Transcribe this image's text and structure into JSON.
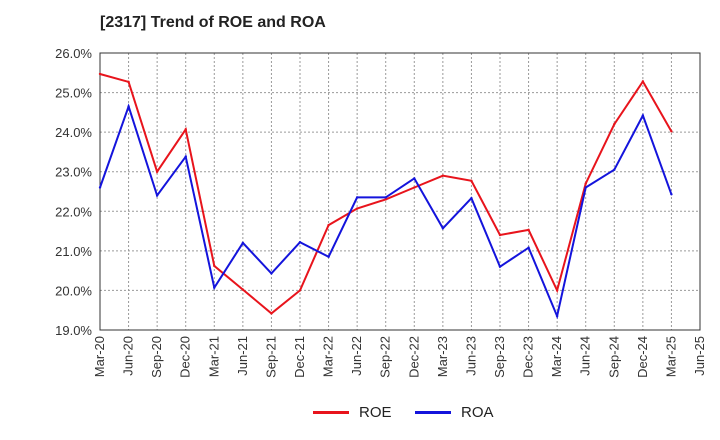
{
  "chart_data": {
    "type": "line",
    "title": "[2317]  Trend of ROE and ROA",
    "xlabel": "",
    "ylabel": "",
    "ylim": [
      19.0,
      26.0
    ],
    "yticks": [
      "19.0%",
      "20.0%",
      "21.0%",
      "22.0%",
      "23.0%",
      "24.0%",
      "25.0%",
      "26.0%"
    ],
    "ytick_values": [
      19.0,
      20.0,
      21.0,
      22.0,
      23.0,
      24.0,
      25.0,
      26.0
    ],
    "categories": [
      "Mar-20",
      "Jun-20",
      "Sep-20",
      "Dec-20",
      "Mar-21",
      "Jun-21",
      "Sep-21",
      "Dec-21",
      "Mar-22",
      "Jun-22",
      "Sep-22",
      "Dec-22",
      "Mar-23",
      "Jun-23",
      "Sep-23",
      "Dec-23",
      "Mar-24",
      "Jun-24",
      "Sep-24",
      "Dec-24",
      "Mar-25",
      "Jun-25"
    ],
    "grid": true,
    "legend_position": "bottom",
    "series": [
      {
        "name": "ROE",
        "color": "#e8141c",
        "values": [
          25.47,
          25.27,
          23.0,
          24.07,
          20.62,
          20.02,
          19.42,
          20.0,
          21.65,
          22.07,
          22.3,
          22.6,
          22.9,
          22.77,
          21.4,
          21.53,
          20.0,
          22.7,
          24.2,
          25.28,
          24.02,
          null
        ]
      },
      {
        "name": "ROA",
        "color": "#1414dc",
        "values": [
          22.6,
          24.65,
          22.4,
          23.38,
          20.07,
          21.2,
          20.43,
          21.22,
          20.85,
          22.35,
          22.35,
          22.83,
          21.57,
          22.33,
          20.6,
          21.08,
          19.35,
          22.6,
          23.05,
          24.42,
          22.43,
          null
        ]
      }
    ]
  }
}
